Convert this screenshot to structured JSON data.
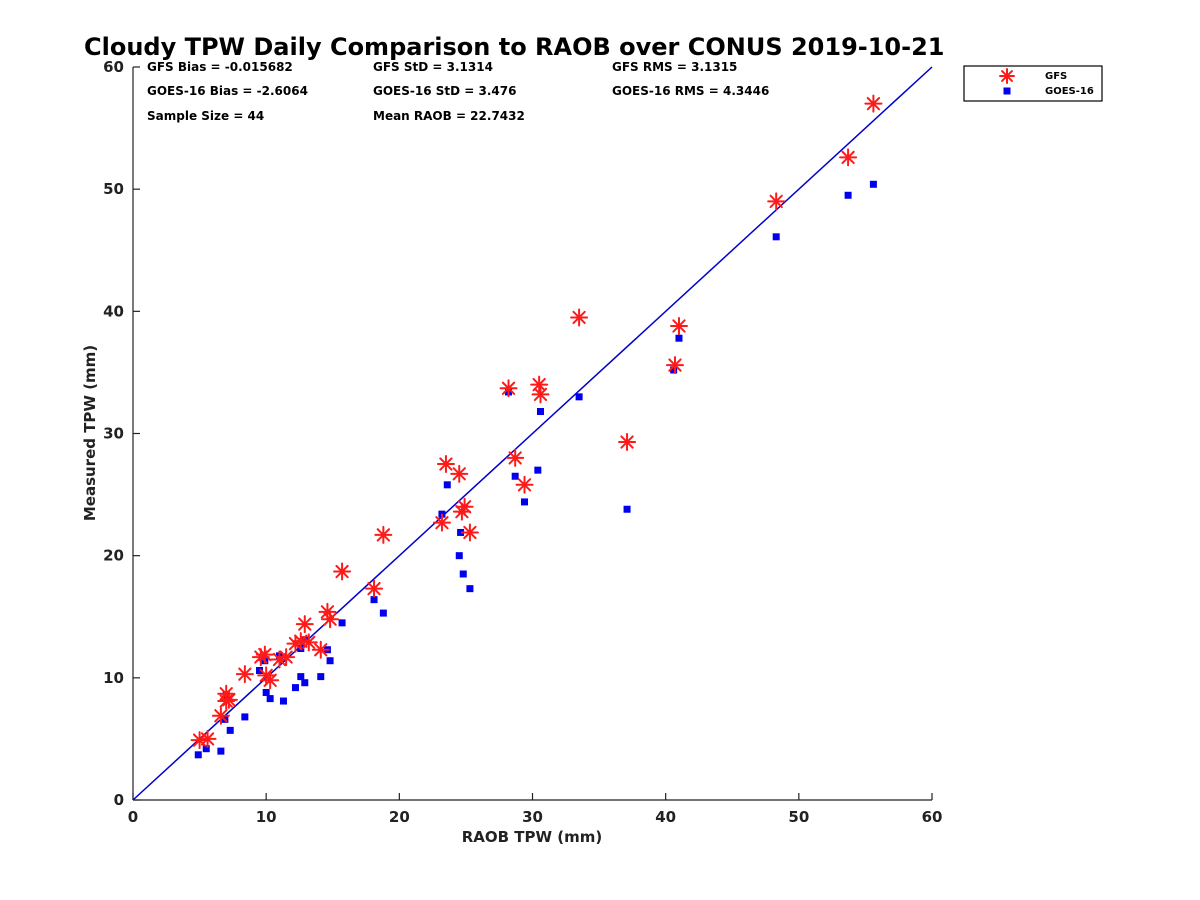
{
  "chart_data": {
    "type": "scatter",
    "title": "Cloudy TPW Daily Comparison to RAOB over CONUS 2019-10-21",
    "xlabel": "RAOB TPW (mm)",
    "ylabel": "Measured TPW (mm)",
    "xlim": [
      0,
      60
    ],
    "ylim": [
      0,
      60
    ],
    "xticks": [
      "0",
      "10",
      "20",
      "30",
      "40",
      "50",
      "60"
    ],
    "yticks": [
      "0",
      "10",
      "20",
      "30",
      "40",
      "50",
      "60"
    ],
    "grid": false,
    "legend_position": "top-right (outside axes)",
    "stats": [
      "GFS Bias = -0.015682",
      "GFS StD = 3.1314",
      "GFS RMS = 3.1315",
      "GOES-16 Bias = -2.6064",
      "GOES-16 StD = 3.476",
      "GOES-16 RMS = 4.3446",
      "Sample Size = 44",
      "Mean RAOB = 22.7432"
    ],
    "reference_line": {
      "x": [
        0,
        60
      ],
      "y": [
        0,
        60
      ],
      "color": "#0000cc"
    },
    "series": [
      {
        "name": "GFS",
        "marker": "asterisk",
        "color": "#ff1a1a",
        "points": [
          [
            5.0,
            4.9
          ],
          [
            5.6,
            5.0
          ],
          [
            6.6,
            6.9
          ],
          [
            7.0,
            8.1
          ],
          [
            7.0,
            8.7
          ],
          [
            7.2,
            8.2
          ],
          [
            8.4,
            10.3
          ],
          [
            9.6,
            11.7
          ],
          [
            9.9,
            11.9
          ],
          [
            10.0,
            10.2
          ],
          [
            10.3,
            9.8
          ],
          [
            11.0,
            11.5
          ],
          [
            11.5,
            11.7
          ],
          [
            12.2,
            12.8
          ],
          [
            12.6,
            13.0
          ],
          [
            12.9,
            14.4
          ],
          [
            13.2,
            12.9
          ],
          [
            14.1,
            12.3
          ],
          [
            14.6,
            15.4
          ],
          [
            14.8,
            14.8
          ],
          [
            15.7,
            18.7
          ],
          [
            18.1,
            17.3
          ],
          [
            18.8,
            21.7
          ],
          [
            23.2,
            22.7
          ],
          [
            23.5,
            27.5
          ],
          [
            24.5,
            26.7
          ],
          [
            24.7,
            23.6
          ],
          [
            24.9,
            24.0
          ],
          [
            25.3,
            21.9
          ],
          [
            28.2,
            33.7
          ],
          [
            28.7,
            28.0
          ],
          [
            29.4,
            25.8
          ],
          [
            30.5,
            34.0
          ],
          [
            30.6,
            33.2
          ],
          [
            33.5,
            39.5
          ],
          [
            37.1,
            29.3
          ],
          [
            40.7,
            35.6
          ],
          [
            41.0,
            38.8
          ],
          [
            48.3,
            49.0
          ],
          [
            53.7,
            52.6
          ],
          [
            55.6,
            57.0
          ]
        ]
      },
      {
        "name": "GOES-16",
        "marker": "square",
        "color": "#0000ee",
        "points": [
          [
            4.9,
            3.7
          ],
          [
            5.5,
            4.2
          ],
          [
            6.6,
            4.0
          ],
          [
            6.9,
            6.6
          ],
          [
            7.0,
            8.6
          ],
          [
            7.3,
            5.7
          ],
          [
            8.4,
            6.8
          ],
          [
            9.5,
            10.6
          ],
          [
            9.9,
            11.4
          ],
          [
            10.0,
            8.8
          ],
          [
            10.3,
            8.3
          ],
          [
            11.0,
            11.8
          ],
          [
            11.3,
            8.1
          ],
          [
            12.2,
            9.2
          ],
          [
            12.6,
            12.4
          ],
          [
            12.6,
            10.1
          ],
          [
            12.9,
            9.6
          ],
          [
            12.9,
            13.1
          ],
          [
            14.1,
            10.1
          ],
          [
            14.6,
            12.3
          ],
          [
            14.8,
            11.4
          ],
          [
            15.7,
            14.5
          ],
          [
            18.1,
            16.4
          ],
          [
            18.8,
            15.3
          ],
          [
            23.2,
            23.4
          ],
          [
            23.6,
            25.8
          ],
          [
            24.5,
            20.0
          ],
          [
            24.6,
            21.9
          ],
          [
            24.8,
            18.5
          ],
          [
            25.3,
            17.3
          ],
          [
            28.2,
            33.4
          ],
          [
            28.7,
            26.5
          ],
          [
            29.4,
            24.4
          ],
          [
            30.4,
            27.0
          ],
          [
            30.6,
            31.8
          ],
          [
            33.5,
            33.0
          ],
          [
            37.1,
            23.8
          ],
          [
            40.6,
            35.2
          ],
          [
            41.0,
            37.8
          ],
          [
            48.3,
            46.1
          ],
          [
            53.7,
            49.5
          ],
          [
            55.6,
            50.4
          ]
        ]
      }
    ]
  }
}
